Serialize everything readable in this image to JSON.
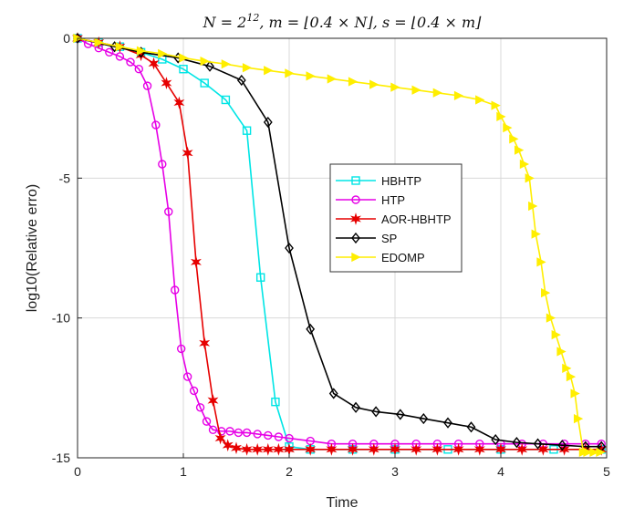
{
  "chart_data": {
    "type": "line",
    "title": "N = 2^12, m = ⌊0.4 × N⌋, s = ⌊0.4 × m⌋",
    "title_parts": {
      "n_part": "N = 2",
      "n_exp": "12",
      "rest": ", m = ⌊0.4 × N⌋, s = ⌊0.4 × m⌋"
    },
    "xlabel": "Time",
    "ylabel": "log10(Relative erro)",
    "xlim": [
      0,
      5
    ],
    "ylim": [
      -15,
      0
    ],
    "xticks": [
      0,
      1,
      2,
      3,
      4,
      5
    ],
    "xtick_labels": [
      "0",
      "1",
      "2",
      "3",
      "4",
      "5"
    ],
    "yticks": [
      0,
      -5,
      -10,
      -15
    ],
    "ytick_labels": [
      "0",
      "-5",
      "-10",
      "-15"
    ],
    "grid": true,
    "legend_position": "center-right",
    "series": [
      {
        "name": "HBHTP",
        "color": "#00e5e5",
        "marker": "square",
        "x": [
          0,
          0.2,
          0.4,
          0.6,
          0.8,
          1.0,
          1.2,
          1.4,
          1.6,
          1.73,
          1.87,
          2.0,
          2.2,
          2.6,
          3.0,
          3.5,
          4.0,
          4.5,
          4.95
        ],
        "y": [
          0,
          -0.15,
          -0.3,
          -0.5,
          -0.75,
          -1.1,
          -1.6,
          -2.2,
          -3.3,
          -8.55,
          -13.0,
          -14.6,
          -14.7,
          -14.7,
          -14.7,
          -14.7,
          -14.7,
          -14.7,
          -14.7
        ]
      },
      {
        "name": "HTP",
        "color": "#e600e6",
        "marker": "circle",
        "x": [
          0,
          0.1,
          0.2,
          0.3,
          0.4,
          0.5,
          0.58,
          0.66,
          0.74,
          0.8,
          0.86,
          0.92,
          0.98,
          1.04,
          1.1,
          1.16,
          1.22,
          1.28,
          1.36,
          1.44,
          1.52,
          1.6,
          1.7,
          1.8,
          1.9,
          2.0,
          2.2,
          2.4,
          2.6,
          2.8,
          3.0,
          3.2,
          3.4,
          3.6,
          3.8,
          4.0,
          4.2,
          4.4,
          4.6,
          4.8,
          4.95
        ],
        "y": [
          0,
          -0.2,
          -0.35,
          -0.5,
          -0.65,
          -0.85,
          -1.1,
          -1.7,
          -3.1,
          -4.5,
          -6.2,
          -9.0,
          -11.1,
          -12.1,
          -12.6,
          -13.2,
          -13.7,
          -14.0,
          -14.05,
          -14.05,
          -14.1,
          -14.1,
          -14.15,
          -14.2,
          -14.25,
          -14.3,
          -14.4,
          -14.5,
          -14.5,
          -14.5,
          -14.5,
          -14.5,
          -14.5,
          -14.5,
          -14.5,
          -14.5,
          -14.5,
          -14.5,
          -14.5,
          -14.5,
          -14.5
        ]
      },
      {
        "name": "AOR-HBHTP",
        "color": "#e60000",
        "marker": "star",
        "x": [
          0,
          0.2,
          0.4,
          0.6,
          0.72,
          0.84,
          0.96,
          1.04,
          1.12,
          1.2,
          1.28,
          1.35,
          1.42,
          1.5,
          1.6,
          1.7,
          1.8,
          1.9,
          2.0,
          2.2,
          2.4,
          2.6,
          2.8,
          3.0,
          3.2,
          3.4,
          3.6,
          3.8,
          4.0,
          4.2,
          4.4,
          4.6,
          4.8,
          4.95
        ],
        "y": [
          0,
          -0.15,
          -0.3,
          -0.6,
          -0.9,
          -1.6,
          -2.3,
          -4.1,
          -8.0,
          -10.9,
          -12.95,
          -14.3,
          -14.55,
          -14.65,
          -14.7,
          -14.7,
          -14.7,
          -14.7,
          -14.7,
          -14.7,
          -14.7,
          -14.7,
          -14.7,
          -14.7,
          -14.7,
          -14.7,
          -14.7,
          -14.7,
          -14.7,
          -14.7,
          -14.7,
          -14.7,
          -14.7,
          -14.7
        ]
      },
      {
        "name": "SP",
        "color": "#000000",
        "marker": "diamond",
        "x": [
          0,
          0.35,
          0.6,
          0.95,
          1.25,
          1.55,
          1.8,
          2.0,
          2.2,
          2.42,
          2.63,
          2.82,
          3.05,
          3.27,
          3.5,
          3.72,
          3.95,
          4.15,
          4.35,
          4.58,
          4.8,
          4.95
        ],
        "y": [
          0,
          -0.3,
          -0.5,
          -0.7,
          -1.0,
          -1.5,
          -3.0,
          -7.5,
          -10.4,
          -12.7,
          -13.2,
          -13.35,
          -13.45,
          -13.6,
          -13.75,
          -13.9,
          -14.35,
          -14.45,
          -14.5,
          -14.55,
          -14.6,
          -14.6
        ]
      },
      {
        "name": "EDOMP",
        "color": "#ffee00",
        "marker": "triangle-right",
        "x": [
          0,
          0.2,
          0.4,
          0.6,
          0.8,
          1.0,
          1.2,
          1.4,
          1.6,
          1.8,
          2.0,
          2.2,
          2.4,
          2.6,
          2.8,
          3.0,
          3.2,
          3.4,
          3.6,
          3.8,
          3.95,
          4.0,
          4.06,
          4.12,
          4.17,
          4.22,
          4.27,
          4.3,
          4.33,
          4.38,
          4.42,
          4.47,
          4.52,
          4.57,
          4.62,
          4.66,
          4.7,
          4.73,
          4.78,
          4.82,
          4.88,
          4.94
        ],
        "y": [
          0,
          -0.15,
          -0.3,
          -0.45,
          -0.55,
          -0.7,
          -0.82,
          -0.92,
          -1.05,
          -1.15,
          -1.25,
          -1.35,
          -1.45,
          -1.55,
          -1.65,
          -1.75,
          -1.85,
          -1.95,
          -2.05,
          -2.2,
          -2.4,
          -2.8,
          -3.2,
          -3.6,
          -4.0,
          -4.5,
          -5.0,
          -6.0,
          -7.0,
          -8.0,
          -9.1,
          -10.0,
          -10.6,
          -11.2,
          -11.8,
          -12.1,
          -12.7,
          -13.6,
          -14.8,
          -14.8,
          -14.8,
          -14.8
        ]
      }
    ]
  }
}
